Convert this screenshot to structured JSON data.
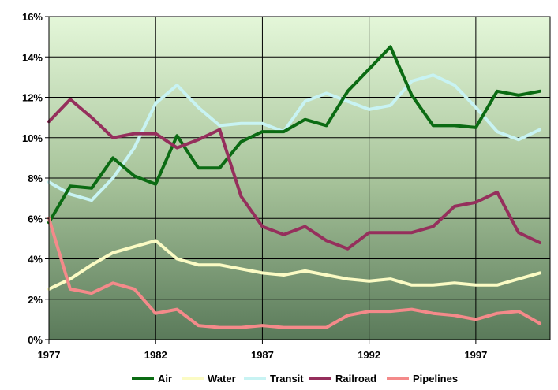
{
  "chart_data": {
    "type": "line",
    "title": "",
    "xlabel": "",
    "ylabel": "",
    "x": [
      1977,
      1978,
      1979,
      1980,
      1981,
      1982,
      1983,
      1984,
      1985,
      1986,
      1987,
      1988,
      1989,
      1990,
      1991,
      1992,
      1993,
      1994,
      1995,
      1996,
      1997,
      1998,
      1999,
      2000
    ],
    "xlim": [
      1977,
      2000
    ],
    "ylim": [
      0,
      16
    ],
    "x_ticks": [
      1977,
      1982,
      1987,
      1992,
      1997
    ],
    "x_tick_labels": [
      "1977",
      "1982",
      "1987",
      "1992",
      "1997"
    ],
    "y_ticks": [
      0,
      2,
      4,
      6,
      8,
      10,
      12,
      14,
      16
    ],
    "y_tick_labels": [
      "0%",
      "2%",
      "4%",
      "6%",
      "8%",
      "10%",
      "12%",
      "14%",
      "16%"
    ],
    "grid": true,
    "legend_position": "bottom",
    "background_gradient": [
      "#e4f7d9",
      "#a8c49b",
      "#5a7a5a"
    ],
    "series": [
      {
        "name": "Air",
        "color": "#0b6b13",
        "values": [
          5.8,
          7.6,
          7.5,
          9.0,
          8.1,
          7.7,
          10.1,
          8.5,
          8.5,
          9.8,
          10.3,
          10.3,
          10.9,
          10.6,
          12.3,
          13.4,
          14.5,
          12.1,
          10.6,
          10.6,
          10.5,
          12.3,
          12.1,
          12.3
        ]
      },
      {
        "name": "Water",
        "color": "#fbfbc4",
        "values": [
          2.5,
          3.0,
          3.7,
          4.3,
          4.6,
          4.9,
          4.0,
          3.7,
          3.7,
          3.5,
          3.3,
          3.2,
          3.4,
          3.2,
          3.0,
          2.9,
          3.0,
          2.7,
          2.7,
          2.8,
          2.7,
          2.7,
          3.0,
          3.3
        ]
      },
      {
        "name": "Transit",
        "color": "#c8f3f3",
        "values": [
          7.8,
          7.2,
          6.9,
          8.0,
          9.5,
          11.7,
          12.6,
          11.5,
          10.6,
          10.7,
          10.7,
          10.3,
          11.8,
          12.2,
          11.8,
          11.4,
          11.6,
          12.8,
          13.1,
          12.6,
          11.5,
          10.3,
          9.9,
          10.4
        ]
      },
      {
        "name": "Railroad",
        "color": "#952f5c",
        "values": [
          10.8,
          11.9,
          11.0,
          10.0,
          10.2,
          10.2,
          9.5,
          9.9,
          10.4,
          7.1,
          5.6,
          5.2,
          5.6,
          4.9,
          4.5,
          5.3,
          5.3,
          5.3,
          5.6,
          6.6,
          6.8,
          7.3,
          5.3,
          4.8
        ]
      },
      {
        "name": "Pipelines",
        "color": "#f48a8a",
        "values": [
          6.0,
          2.5,
          2.3,
          2.8,
          2.5,
          1.3,
          1.5,
          0.7,
          0.6,
          0.6,
          0.7,
          0.6,
          0.6,
          0.6,
          1.2,
          1.4,
          1.4,
          1.5,
          1.3,
          1.2,
          1.0,
          1.3,
          1.4,
          0.8
        ]
      }
    ]
  }
}
